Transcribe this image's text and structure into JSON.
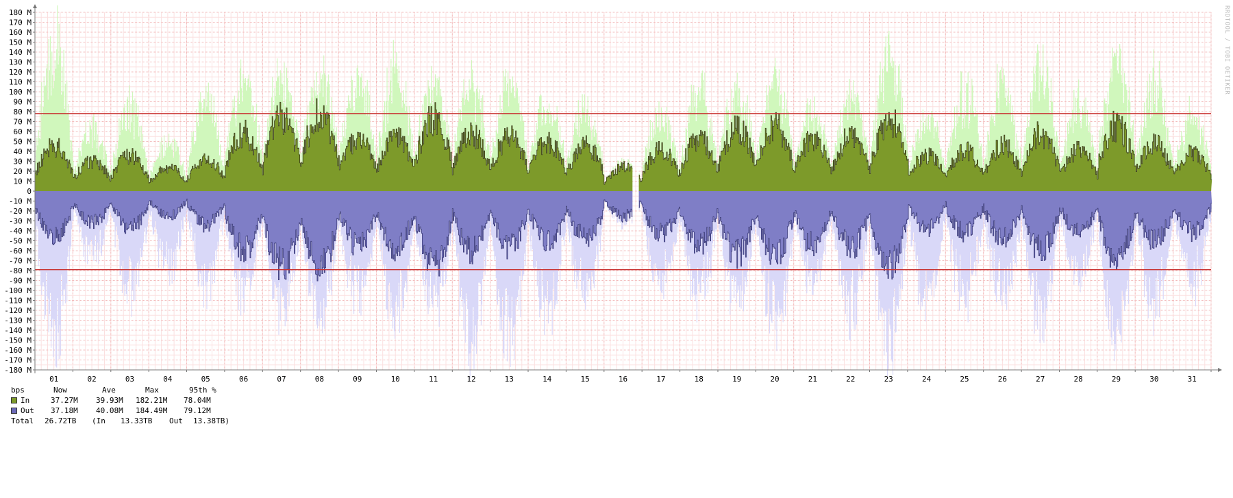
{
  "chart_data": {
    "type": "area",
    "x_unit": "day of month",
    "y_unit": "bps",
    "ylim": [
      -180000000,
      180000000
    ],
    "y_ticks": [
      180000000,
      170000000,
      160000000,
      150000000,
      140000000,
      130000000,
      120000000,
      110000000,
      100000000,
      90000000,
      80000000,
      70000000,
      60000000,
      50000000,
      40000000,
      30000000,
      20000000,
      10000000,
      0,
      -10000000,
      -20000000,
      -30000000,
      -40000000,
      -50000000,
      -60000000,
      -70000000,
      -80000000,
      -90000000,
      -100000000,
      -110000000,
      -120000000,
      -130000000,
      -140000000,
      -150000000,
      -160000000,
      -170000000,
      -180000000
    ],
    "y_tick_labels": [
      "180 M",
      "170 M",
      "160 M",
      "150 M",
      "140 M",
      "130 M",
      "120 M",
      "110 M",
      "100 M",
      "90 M",
      "80 M",
      "70 M",
      "60 M",
      "50 M",
      "40 M",
      "30 M",
      "20 M",
      "10 M",
      "0",
      "-10 M",
      "-20 M",
      "-30 M",
      "-40 M",
      "-50 M",
      "-60 M",
      "-70 M",
      "-80 M",
      "-90 M",
      "-100 M",
      "-110 M",
      "-120 M",
      "-130 M",
      "-140 M",
      "-150 M",
      "-160 M",
      "-170 M",
      "-180 M"
    ],
    "x_tick_labels": [
      "01",
      "02",
      "03",
      "04",
      "05",
      "06",
      "07",
      "08",
      "09",
      "10",
      "11",
      "12",
      "13",
      "14",
      "15",
      "16",
      "17",
      "18",
      "19",
      "20",
      "21",
      "22",
      "23",
      "24",
      "25",
      "26",
      "27",
      "28",
      "29",
      "30",
      "31"
    ],
    "x_label_positions": [
      1.5,
      2.5,
      3.5,
      4.5,
      5.5,
      6.5,
      7.5,
      8.5,
      9.5,
      10.5,
      11.5,
      12.5,
      13.5,
      14.5,
      15.5,
      16.5,
      17.5,
      18.5,
      19.5,
      20.5,
      21.5,
      22.5,
      23.5,
      24.5,
      25.5,
      26.5,
      27.5,
      28.5,
      29.5,
      30.5,
      31.5
    ],
    "x_range": [
      1,
      32
    ],
    "gap": [
      16.73,
      16.9
    ],
    "grid": true,
    "threshold_lines": [
      {
        "name": "95th % In",
        "value": 78040000
      },
      {
        "name": "95th % Out",
        "value": -79120000
      }
    ],
    "daily_envelope_mbps": {
      "in_avg": [
        38,
        25,
        30,
        20,
        27,
        48,
        62,
        64,
        44,
        47,
        60,
        48,
        46,
        42,
        38,
        20,
        35,
        44,
        52,
        54,
        44,
        46,
        60,
        30,
        34,
        38,
        48,
        34,
        55,
        40,
        33
      ],
      "in_max": [
        182,
        70,
        100,
        60,
        110,
        130,
        115,
        120,
        130,
        140,
        116,
        120,
        123,
        95,
        90,
        25,
        85,
        110,
        110,
        122,
        84,
        100,
        150,
        82,
        120,
        125,
        140,
        100,
        155,
        126,
        85
      ],
      "out_avg": [
        38,
        26,
        31,
        21,
        28,
        49,
        63,
        65,
        45,
        48,
        61,
        49,
        47,
        43,
        39,
        21,
        36,
        45,
        53,
        55,
        45,
        47,
        61,
        31,
        35,
        39,
        49,
        35,
        56,
        41,
        34
      ],
      "out_max": [
        180,
        72,
        120,
        95,
        110,
        110,
        120,
        130,
        120,
        140,
        120,
        170,
        180,
        145,
        120,
        30,
        108,
        120,
        120,
        150,
        95,
        140,
        165,
        140,
        125,
        120,
        140,
        95,
        160,
        130,
        105
      ]
    },
    "series": [
      {
        "name": "In",
        "fill_avg": "#7d9a2a",
        "fill_max": "#d0f7bc",
        "line": "#3d3d1d",
        "direction": "up"
      },
      {
        "name": "Out",
        "fill_avg": "#7f7ec6",
        "fill_max": "#d9d8f8",
        "line": "#3a3a78",
        "direction": "down"
      }
    ],
    "colors": {
      "grid_major": "#f2b8b8",
      "grid_minor": "#fbe0e0",
      "percentile_line": "#c8302f",
      "axis": "#777777"
    }
  },
  "side_credit": "RRDTOOL / TOBI OETIKER",
  "legend": {
    "header": {
      "unit": "bps",
      "now": "Now",
      "ave": "Ave",
      "max": "Max",
      "pct": "95th %"
    },
    "rows": [
      {
        "name": "In",
        "color": "#7d9a2a",
        "now": "37.27M",
        "ave": "39.93M",
        "max": "182.21M",
        "pct": "78.04M"
      },
      {
        "name": "Out",
        "color": "#6c6ab8",
        "now": "37.18M",
        "ave": "40.08M",
        "max": "184.49M",
        "pct": "79.12M"
      }
    ],
    "total": {
      "label": "Total",
      "value": "26.72TB",
      "in_label": "(In",
      "in_value": "13.33TB",
      "out_label": "Out",
      "out_value": "13.38TB)"
    }
  }
}
